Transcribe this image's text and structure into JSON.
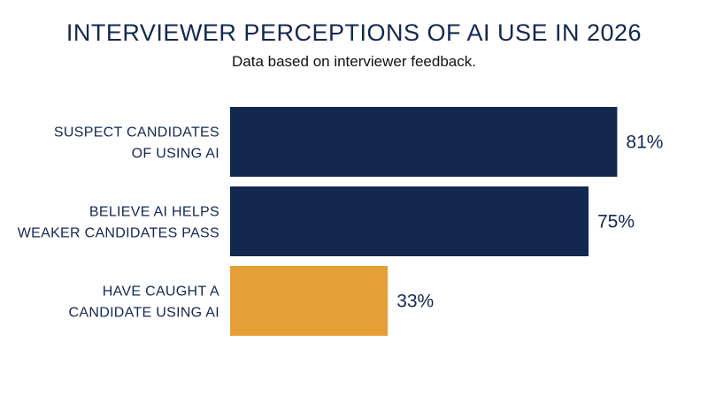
{
  "chart_data": {
    "type": "bar",
    "orientation": "horizontal",
    "title": "INTERVIEWER PERCEPTIONS OF AI USE IN 2026",
    "subtitle": "Data based on interviewer feedback.",
    "categories": [
      [
        "SUSPECT CANDIDATES",
        "OF USING AI"
      ],
      [
        "BELIEVE AI HELPS",
        "WEAKER CANDIDATES PASS"
      ],
      [
        "HAVE CAUGHT A",
        "CANDIDATE USING AI"
      ]
    ],
    "values": [
      81,
      75,
      33
    ],
    "value_labels": [
      "81%",
      "75%",
      "33%"
    ],
    "colors": [
      "#13284f",
      "#13284f",
      "#e59f37"
    ],
    "xlim": [
      0,
      100
    ],
    "grid": false,
    "legend": "none"
  }
}
